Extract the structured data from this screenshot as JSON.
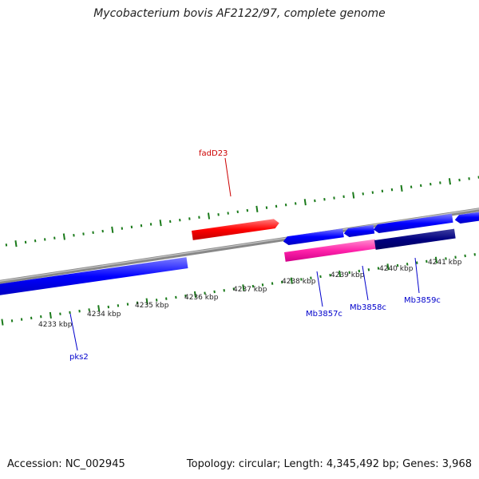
{
  "title": "Mycobacterium bovis AF2122/97, complete genome",
  "footer": {
    "accession": "Accession: NC_002945",
    "summary": "Topology: circular; Length: 4,345,492 bp; Genes: 3,968"
  },
  "colors": {
    "background": "#ffffff",
    "backbone": "#888888",
    "tick_mark": "#1a7a1a",
    "gene_forward": "#ff0000",
    "gene_reverse": "#0000ff",
    "gene_highlight": "#ff22aa",
    "gene_dark": "#000080",
    "label_forward": "#cc0000",
    "label_reverse": "#0000cc"
  },
  "tick_labels": [
    "4233 kbp",
    "4234 kbp",
    "4235 kbp",
    "4236 kbp",
    "4237 kbp",
    "4238 kbp",
    "4239 kbp",
    "4240 kbp",
    "4241 kbp"
  ],
  "gene_labels": {
    "forward": [
      "fadD23"
    ],
    "reverse": [
      "pks2",
      "Mb3857c",
      "Mb3858c",
      "Mb3859c"
    ]
  }
}
